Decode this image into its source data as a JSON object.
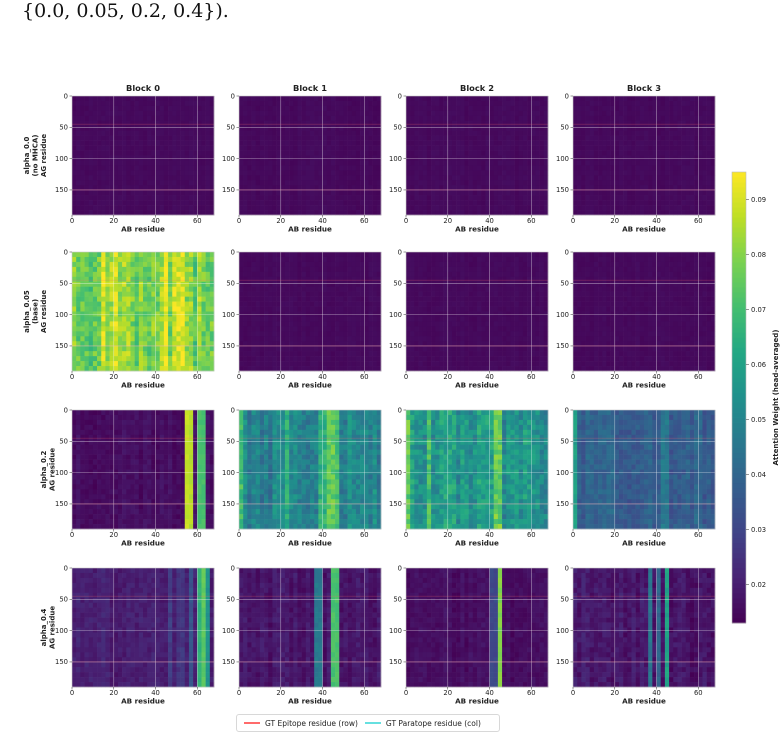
{
  "caption": "{0.0, 0.05, 0.2, 0.4}).",
  "chart_data": {
    "type": "heatmap",
    "column_titles": [
      "Block 0",
      "Block 1",
      "Block 2",
      "Block 3"
    ],
    "row_labels": [
      [
        "alpha_0.0",
        "(no MHCA)",
        "AG residue"
      ],
      [
        "alpha_0.05",
        "(base)",
        "AG residue"
      ],
      [
        "alpha_0.2",
        "AG residue"
      ],
      [
        "alpha_0.4",
        "AG residue"
      ]
    ],
    "xlabel": "AB residue",
    "x_ticks": [
      0,
      20,
      40,
      60
    ],
    "y_ticks": [
      0,
      50,
      100,
      150
    ],
    "xlim": [
      0,
      68
    ],
    "ylim": [
      190,
      0
    ],
    "colorbar": {
      "label": "Attention Weight (head-averaged)",
      "range": [
        0.013,
        0.095
      ],
      "ticks": [
        "0.02",
        "0.03",
        "0.04",
        "0.05",
        "0.06",
        "0.07",
        "0.08",
        "0.09"
      ],
      "tick_values": [
        0.02,
        0.03,
        0.04,
        0.05,
        0.06,
        0.07,
        0.08,
        0.09
      ],
      "colormap": "viridis"
    },
    "gt_epitope_rows": [
      45,
      150
    ],
    "gt_paratope_cols": [],
    "panels": [
      [
        {
          "base": 0.015,
          "hot_cols": [],
          "noise": 0.001
        },
        {
          "base": 0.015,
          "hot_cols": [],
          "noise": 0.001
        },
        {
          "base": 0.015,
          "hot_cols": [],
          "noise": 0.001
        },
        {
          "base": 0.015,
          "hot_cols": [],
          "noise": 0.001
        }
      ],
      [
        {
          "base": 0.078,
          "hot_cols": [
            [
              15,
              0.09
            ],
            [
              21,
              0.092
            ],
            [
              45,
              0.094
            ],
            [
              50,
              0.094
            ],
            [
              53,
              0.092
            ]
          ],
          "noise": 0.012
        },
        {
          "base": 0.015,
          "hot_cols": [],
          "noise": 0.001
        },
        {
          "base": 0.015,
          "hot_cols": [],
          "noise": 0.001
        },
        {
          "base": 0.015,
          "hot_cols": [],
          "noise": 0.001
        }
      ],
      [
        {
          "base": 0.016,
          "hot_cols": [
            [
              55,
              0.088
            ],
            [
              56,
              0.09
            ],
            [
              62,
              0.075
            ]
          ],
          "noise": 0.003
        },
        {
          "base": 0.05,
          "hot_cols": [
            [
              1,
              0.07
            ],
            [
              23,
              0.065
            ],
            [
              40,
              0.07
            ],
            [
              44,
              0.08
            ],
            [
              46,
              0.075
            ]
          ],
          "noise": 0.01
        },
        {
          "base": 0.055,
          "hot_cols": [
            [
              1,
              0.075
            ],
            [
              11,
              0.07
            ],
            [
              20,
              0.065
            ],
            [
              44,
              0.08
            ]
          ],
          "noise": 0.012
        },
        {
          "base": 0.038,
          "hot_cols": [
            [
              1,
              0.06
            ],
            [
              18,
              0.045
            ],
            [
              44,
              0.05
            ]
          ],
          "noise": 0.006
        }
      ],
      [
        {
          "base": 0.02,
          "hot_cols": [
            [
              47,
              0.028
            ],
            [
              52,
              0.03
            ],
            [
              57,
              0.035
            ],
            [
              62,
              0.07
            ],
            [
              63,
              0.075
            ],
            [
              64,
              0.06
            ]
          ],
          "noise": 0.004
        },
        {
          "base": 0.018,
          "hot_cols": [
            [
              38,
              0.05
            ],
            [
              46,
              0.075
            ]
          ],
          "noise": 0.004
        },
        {
          "base": 0.016,
          "hot_cols": [
            [
              42,
              0.035
            ],
            [
              45,
              0.08
            ]
          ],
          "noise": 0.003
        },
        {
          "base": 0.018,
          "hot_cols": [
            [
              37,
              0.045
            ],
            [
              41,
              0.04
            ],
            [
              45,
              0.06
            ]
          ],
          "noise": 0.005
        }
      ]
    ]
  },
  "legend": {
    "epitope_label": "GT Epitope residue (row)",
    "epitope_color": "#ff6b6b",
    "paratope_label": "GT Paratope residue (col)",
    "paratope_color": "#66e0e0"
  }
}
